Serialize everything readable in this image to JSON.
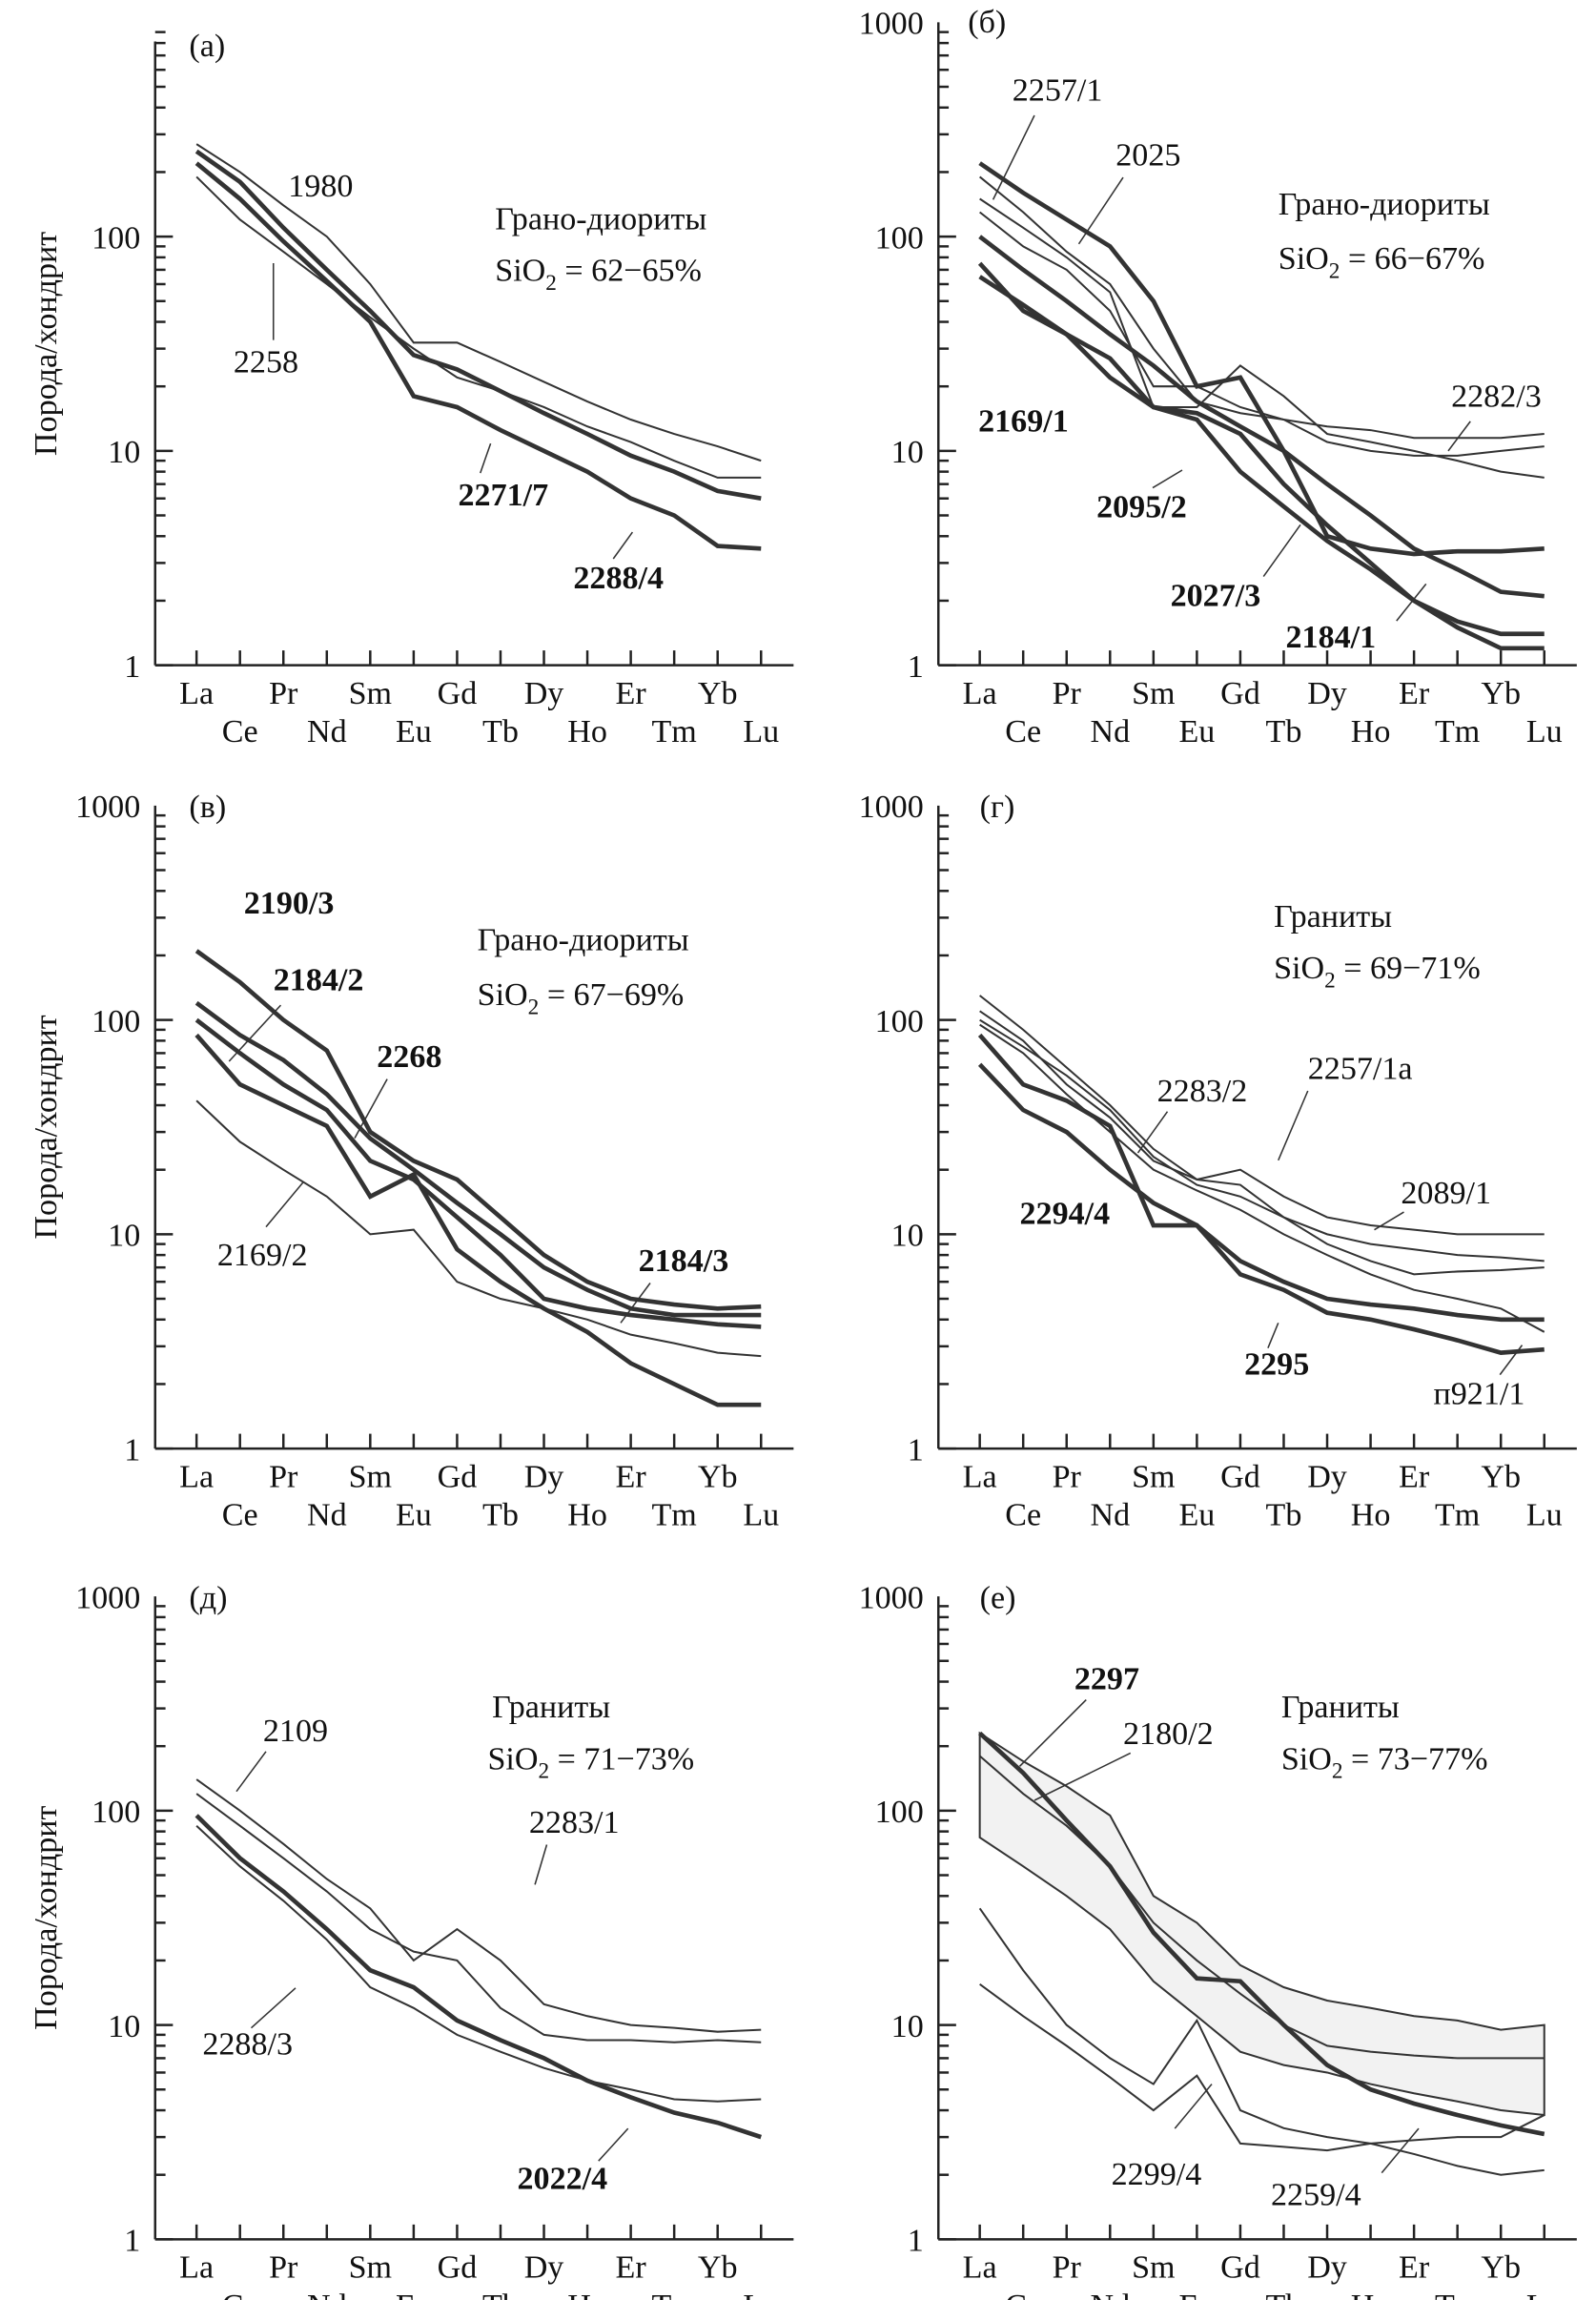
{
  "chart_data": [
    {
      "type": "line",
      "panel": "(а)",
      "ylabel": "Порода/хондрит",
      "yscale": "log",
      "ylim": [
        1,
        1000
      ],
      "ytick_labels": [
        "1",
        "10",
        "100"
      ],
      "title": "Грано-диориты",
      "formula": "SiO",
      "formula_sub": "2",
      "range": " = 62−65%",
      "categories": [
        "La",
        "Ce",
        "Pr",
        "Nd",
        "Sm",
        "Eu",
        "Gd",
        "Tb",
        "Dy",
        "Ho",
        "Er",
        "Tm",
        "Yb",
        "Lu"
      ],
      "series": [
        {
          "name": "1980",
          "bold": false,
          "values": [
            270,
            200,
            140,
            100,
            60,
            32,
            32,
            26,
            21,
            17,
            14,
            12,
            10.5,
            9
          ]
        },
        {
          "name": "2258",
          "bold": false,
          "values": [
            190,
            120,
            85,
            60,
            42,
            30,
            22,
            19,
            16,
            13,
            11,
            9,
            7.5,
            7.5
          ]
        },
        {
          "name": "2271/7",
          "bold": true,
          "values": [
            250,
            180,
            110,
            70,
            45,
            28,
            24,
            19,
            15,
            12,
            9.5,
            8,
            6.5,
            6
          ]
        },
        {
          "name": "2288/4",
          "bold": true,
          "values": [
            220,
            150,
            95,
            62,
            40,
            18,
            16,
            12.5,
            10,
            8,
            6,
            5,
            3.6,
            3.5
          ]
        }
      ]
    },
    {
      "type": "line",
      "panel": "(б)",
      "ylabel": "",
      "yscale": "log",
      "ylim": [
        1,
        1000
      ],
      "ytick_labels": [
        "1",
        "10",
        "100",
        "1000"
      ],
      "title": "Грано-диориты",
      "formula": "SiO",
      "formula_sub": "2",
      "range": " = 66−67%",
      "categories": [
        "La",
        "Ce",
        "Pr",
        "Nd",
        "Sm",
        "Eu",
        "Gd",
        "Tb",
        "Dy",
        "Ho",
        "Er",
        "Tm",
        "Yb",
        "Lu"
      ],
      "series": [
        {
          "name": "2257/1",
          "bold": false,
          "values": [
            190,
            130,
            85,
            60,
            30,
            17,
            15,
            14,
            13,
            12.5,
            11.5,
            11.5,
            11.5,
            12
          ]
        },
        {
          "name": "2025",
          "bold": false,
          "values": [
            150,
            110,
            80,
            55,
            16,
            16,
            25,
            18,
            12,
            11,
            10,
            9,
            8,
            7.5
          ]
        },
        {
          "name": "2282/3",
          "bold": false,
          "values": [
            130,
            90,
            70,
            45,
            20,
            20,
            16,
            14,
            11,
            10,
            9.5,
            9.5,
            10,
            10.5
          ]
        },
        {
          "name": "2095/2",
          "bold": true,
          "values": [
            220,
            160,
            120,
            90,
            50,
            20,
            22,
            10,
            4,
            3.5,
            3.3,
            3.4,
            3.4,
            3.5
          ]
        },
        {
          "name": "2169/1",
          "bold": true,
          "values": [
            100,
            70,
            50,
            35,
            25,
            17,
            13,
            10,
            7,
            5,
            3.5,
            2.8,
            2.2,
            2.1
          ]
        },
        {
          "name": "2027/3",
          "bold": true,
          "values": [
            75,
            45,
            35,
            27,
            16,
            15,
            12,
            7,
            4.5,
            3,
            2,
            1.6,
            1.4,
            1.4
          ]
        },
        {
          "name": "2184/1",
          "bold": true,
          "values": [
            65,
            48,
            35,
            22,
            16,
            14,
            8,
            5.5,
            3.8,
            2.8,
            2,
            1.5,
            1.2,
            1.2
          ]
        }
      ]
    },
    {
      "type": "line",
      "panel": "(в)",
      "ylabel": "Порода/хондрит",
      "yscale": "log",
      "ylim": [
        1,
        1000
      ],
      "ytick_labels": [
        "1",
        "10",
        "100",
        "1000"
      ],
      "title": "Грано-диориты",
      "formula": "SiO",
      "formula_sub": "2",
      "range": " = 67−69%",
      "categories": [
        "La",
        "Ce",
        "Pr",
        "Nd",
        "Sm",
        "Eu",
        "Gd",
        "Tb",
        "Dy",
        "Ho",
        "Er",
        "Tm",
        "Yb",
        "Lu"
      ],
      "series": [
        {
          "name": "2190/3",
          "bold": true,
          "values": [
            210,
            150,
            100,
            72,
            30,
            22,
            18,
            12,
            8,
            6,
            5,
            4.7,
            4.5,
            4.6
          ]
        },
        {
          "name": "2184/2",
          "bold": true,
          "values": [
            120,
            85,
            65,
            45,
            28,
            20,
            14,
            10,
            7,
            5.5,
            4.5,
            4.2,
            4.2,
            4.2
          ]
        },
        {
          "name": "2268",
          "bold": true,
          "values": [
            100,
            70,
            50,
            38,
            22,
            18,
            12,
            8,
            5,
            4.5,
            4.2,
            4,
            3.8,
            3.7
          ]
        },
        {
          "name": "2184/3",
          "bold": true,
          "values": [
            85,
            50,
            40,
            32,
            15,
            19,
            8.5,
            6,
            4.5,
            3.5,
            2.5,
            2,
            1.6,
            1.6
          ]
        },
        {
          "name": "2169/2",
          "bold": false,
          "values": [
            42,
            27,
            20,
            15,
            10,
            10.5,
            6,
            5,
            4.5,
            4,
            3.4,
            3.1,
            2.8,
            2.7
          ]
        }
      ]
    },
    {
      "type": "line",
      "panel": "(г)",
      "ylabel": "",
      "yscale": "log",
      "ylim": [
        1,
        1000
      ],
      "ytick_labels": [
        "1",
        "10",
        "100",
        "1000"
      ],
      "title": "Граниты",
      "formula": "SiO",
      "formula_sub": "2",
      "range": " = 69−71%",
      "categories": [
        "La",
        "Ce",
        "Pr",
        "Nd",
        "Sm",
        "Eu",
        "Gd",
        "Tb",
        "Dy",
        "Ho",
        "Er",
        "Tm",
        "Yb",
        "Lu"
      ],
      "series": [
        {
          "name": "2257/1a",
          "bold": false,
          "values": [
            130,
            90,
            60,
            40,
            25,
            18,
            20,
            15,
            12,
            11,
            10.5,
            10,
            10,
            10
          ]
        },
        {
          "name": "2283/2",
          "bold": false,
          "values": [
            100,
            75,
            55,
            38,
            23,
            17,
            15,
            12,
            10,
            9,
            8.5,
            8,
            7.8,
            7.5
          ]
        },
        {
          "name": "2089/1",
          "bold": false,
          "values": [
            110,
            80,
            50,
            35,
            22,
            18,
            17,
            12,
            9,
            7.5,
            6.5,
            6.7,
            6.8,
            7
          ]
        },
        {
          "name": "п921/1",
          "bold": false,
          "values": [
            95,
            70,
            45,
            30,
            20,
            16,
            13,
            10,
            8,
            6.5,
            5.5,
            5,
            4.5,
            3.5
          ]
        },
        {
          "name": "2294/4",
          "bold": true,
          "values": [
            85,
            50,
            42,
            32,
            11,
            11,
            7.5,
            6,
            5,
            4.7,
            4.5,
            4.2,
            4,
            4
          ]
        },
        {
          "name": "2295",
          "bold": true,
          "values": [
            62,
            38,
            30,
            20,
            14,
            11,
            6.5,
            5.5,
            4.3,
            4,
            3.6,
            3.2,
            2.8,
            2.9
          ]
        }
      ]
    },
    {
      "type": "line",
      "panel": "(д)",
      "ylabel": "Порода/хондрит",
      "yscale": "log",
      "ylim": [
        1,
        1000
      ],
      "ytick_labels": [
        "1",
        "10",
        "100",
        "1000"
      ],
      "title": "Граниты",
      "formula": "SiO",
      "formula_sub": "2",
      "range": " = 71−73%",
      "categories": [
        "La",
        "Ce",
        "Pr",
        "Nd",
        "Sm",
        "Eu",
        "Gd",
        "Tb",
        "Dy",
        "Ho",
        "Er",
        "Tm",
        "Yb",
        "Lu"
      ],
      "series": [
        {
          "name": "2109",
          "bold": false,
          "values": [
            140,
            100,
            70,
            48,
            35,
            20,
            28,
            20,
            12.5,
            11,
            10,
            9.7,
            9.3,
            9.5
          ]
        },
        {
          "name": "2283/1",
          "bold": false,
          "values": [
            120,
            85,
            60,
            42,
            28,
            22,
            20,
            12,
            9,
            8.5,
            8.5,
            8.3,
            8.5,
            8.3
          ]
        },
        {
          "name": "2288/3",
          "bold": false,
          "values": [
            85,
            55,
            38,
            25,
            15,
            12,
            9,
            7.5,
            6.3,
            5.5,
            5,
            4.5,
            4.4,
            4.5
          ]
        },
        {
          "name": "2022/4",
          "bold": true,
          "values": [
            95,
            60,
            42,
            28,
            18,
            15,
            10.5,
            8.5,
            7,
            5.5,
            4.6,
            3.9,
            3.5,
            3
          ]
        }
      ]
    },
    {
      "type": "line",
      "panel": "(е)",
      "ylabel": "",
      "yscale": "log",
      "ylim": [
        1,
        1000
      ],
      "ytick_labels": [
        "1",
        "10",
        "100",
        "1000"
      ],
      "title": "Граниты",
      "formula": "SiO",
      "formula_sub": "2",
      "range": " = 73−77%",
      "categories": [
        "La",
        "Ce",
        "Pr",
        "Nd",
        "Sm",
        "Eu",
        "Gd",
        "Tb",
        "Dy",
        "Ho",
        "Er",
        "Tm",
        "Yb",
        "Lu"
      ],
      "field": {
        "upper": [
          230,
          170,
          130,
          95,
          40,
          30,
          19,
          15,
          13,
          12,
          11,
          10.5,
          9.5,
          10
        ],
        "lower": [
          75,
          55,
          40,
          28,
          16,
          11,
          7.5,
          6.5,
          6,
          5.3,
          4.8,
          4.4,
          4,
          3.8
        ]
      },
      "series": [
        {
          "name": "2180/2",
          "bold": false,
          "values": [
            180,
            120,
            85,
            55,
            30,
            20,
            14,
            10,
            8,
            7.5,
            7.2,
            7,
            7,
            7
          ]
        },
        {
          "name": "2297",
          "bold": true,
          "values": [
            230,
            150,
            90,
            55,
            27,
            16.5,
            16,
            10,
            6.5,
            5,
            4.3,
            3.8,
            3.4,
            3.1
          ]
        },
        {
          "name": "2299/4",
          "bold": false,
          "values": [
            35,
            18,
            10,
            7,
            5.3,
            10.5,
            4,
            3.3,
            3,
            2.8,
            2.5,
            2.2,
            2,
            2.1
          ]
        },
        {
          "name": "2259/4",
          "bold": false,
          "values": [
            15.5,
            11,
            8,
            5.7,
            4,
            5.8,
            2.8,
            2.7,
            2.6,
            2.8,
            2.9,
            3,
            3,
            3.8
          ]
        }
      ]
    }
  ]
}
